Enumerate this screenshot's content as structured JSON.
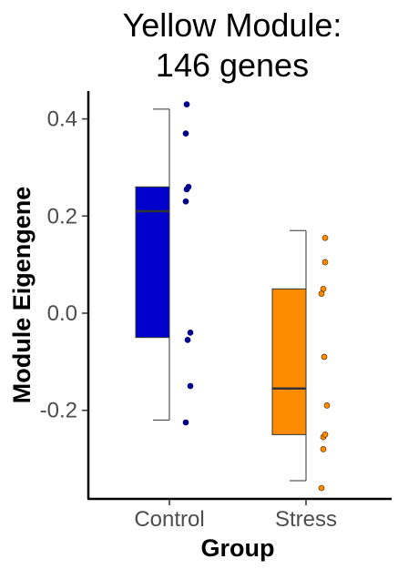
{
  "chart_data": {
    "type": "boxplot",
    "title_lines": [
      "Yellow Module:",
      "146 genes"
    ],
    "xlabel": "Group",
    "ylabel": "Module Eigengene",
    "ylim": [
      -0.38,
      0.46
    ],
    "yticks": [
      {
        "value": 0.4,
        "label": "0.4"
      },
      {
        "value": 0.2,
        "label": "0.2"
      },
      {
        "value": 0.0,
        "label": "0.0"
      },
      {
        "value": -0.2,
        "label": "-0.2"
      }
    ],
    "grid": false,
    "legend": "none",
    "groups": [
      {
        "name": "Control",
        "color": "#0000CD",
        "point_color": "#00008B",
        "whisker_low": -0.22,
        "q1": -0.05,
        "median": 0.21,
        "q3": 0.26,
        "whisker_high": 0.42,
        "points": [
          0.43,
          0.37,
          0.26,
          0.255,
          0.23,
          -0.04,
          -0.055,
          -0.15,
          -0.225
        ]
      },
      {
        "name": "Stress",
        "color": "#FF8C00",
        "point_color": "#FF8C00",
        "whisker_low": -0.345,
        "q1": -0.25,
        "median": -0.155,
        "q3": 0.05,
        "whisker_high": 0.17,
        "points": [
          0.155,
          0.105,
          0.05,
          0.04,
          -0.09,
          -0.19,
          -0.255,
          -0.25,
          -0.28,
          -0.36
        ]
      }
    ]
  }
}
